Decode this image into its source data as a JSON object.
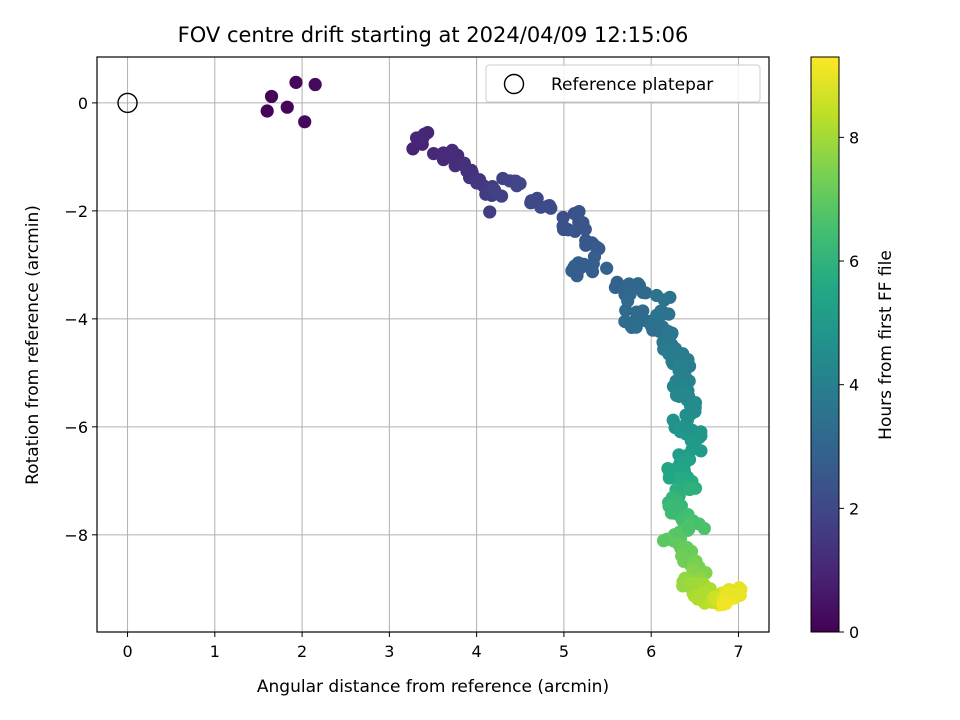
{
  "chart_data": {
    "type": "scatter",
    "title": "FOV centre drift starting at 2024/04/09 12:15:06",
    "xlabel": "Angular distance from reference (arcmin)",
    "ylabel": "Rotation from reference (arcmin)",
    "colorbar_label": "Hours from first FF file",
    "xlim": [
      -0.35,
      7.35
    ],
    "ylim": [
      -9.8,
      0.85
    ],
    "x_ticks": [
      0,
      1,
      2,
      3,
      4,
      5,
      6,
      7
    ],
    "y_ticks": [
      0,
      -2,
      -4,
      -6,
      -8
    ],
    "colorbar_range": [
      0,
      9.3
    ],
    "colorbar_ticks": [
      0,
      2,
      4,
      6,
      8
    ],
    "colormap": "viridis",
    "grid": true,
    "legend": {
      "position": "upper right",
      "entries": [
        "Reference platepar"
      ]
    },
    "reference_point": {
      "x": 0,
      "y": 0
    },
    "anchors": [
      [
        1.6,
        -0.15,
        0.05
      ],
      [
        1.65,
        0.12,
        0.08
      ],
      [
        1.83,
        -0.08,
        0.12
      ],
      [
        1.93,
        0.38,
        0.16
      ],
      [
        2.03,
        -0.35,
        0.2
      ],
      [
        2.15,
        0.34,
        0.25
      ],
      [
        3.27,
        -0.85,
        0.9
      ],
      [
        3.4,
        -0.58,
        1.0
      ],
      [
        3.62,
        -1.05,
        1.1
      ],
      [
        3.72,
        -0.88,
        1.15
      ],
      [
        3.85,
        -1.15,
        1.25
      ],
      [
        3.95,
        -1.3,
        1.35
      ],
      [
        4.05,
        -1.5,
        1.45
      ],
      [
        4.18,
        -1.55,
        1.6
      ],
      [
        4.15,
        -2.02,
        1.7
      ],
      [
        4.3,
        -1.4,
        1.8
      ],
      [
        4.45,
        -1.45,
        1.9
      ],
      [
        4.62,
        -1.85,
        2.0
      ],
      [
        4.85,
        -1.95,
        2.15
      ],
      [
        5.05,
        -2.35,
        2.3
      ],
      [
        5.12,
        -2.05,
        2.4
      ],
      [
        5.25,
        -2.55,
        2.5
      ],
      [
        5.4,
        -2.7,
        2.65
      ],
      [
        5.15,
        -3.2,
        2.75
      ],
      [
        5.35,
        -2.85,
        2.8
      ],
      [
        5.7,
        -3.55,
        3.0
      ],
      [
        5.85,
        -3.35,
        3.1
      ],
      [
        5.8,
        -4.05,
        3.25
      ],
      [
        6.05,
        -4.2,
        3.4
      ],
      [
        6.15,
        -3.65,
        3.55
      ],
      [
        6.2,
        -4.5,
        3.7
      ],
      [
        6.3,
        -4.7,
        3.85
      ],
      [
        6.4,
        -4.9,
        4.0
      ],
      [
        6.35,
        -5.3,
        4.2
      ],
      [
        6.45,
        -5.6,
        4.45
      ],
      [
        6.3,
        -6.0,
        4.7
      ],
      [
        6.55,
        -6.2,
        4.95
      ],
      [
        6.4,
        -6.6,
        5.2
      ],
      [
        6.25,
        -6.85,
        5.5
      ],
      [
        6.45,
        -7.1,
        5.8
      ],
      [
        6.2,
        -7.4,
        6.1
      ],
      [
        6.35,
        -7.7,
        6.4
      ],
      [
        6.55,
        -7.8,
        6.6
      ],
      [
        6.25,
        -8.1,
        6.9
      ],
      [
        6.4,
        -8.4,
        7.2
      ],
      [
        6.55,
        -8.6,
        7.5
      ],
      [
        6.45,
        -8.85,
        7.8
      ],
      [
        6.6,
        -9.05,
        8.1
      ],
      [
        6.7,
        -9.25,
        8.4
      ],
      [
        6.85,
        -9.15,
        8.7
      ],
      [
        6.95,
        -9.05,
        9.0
      ],
      [
        6.78,
        -9.3,
        9.2
      ]
    ]
  }
}
